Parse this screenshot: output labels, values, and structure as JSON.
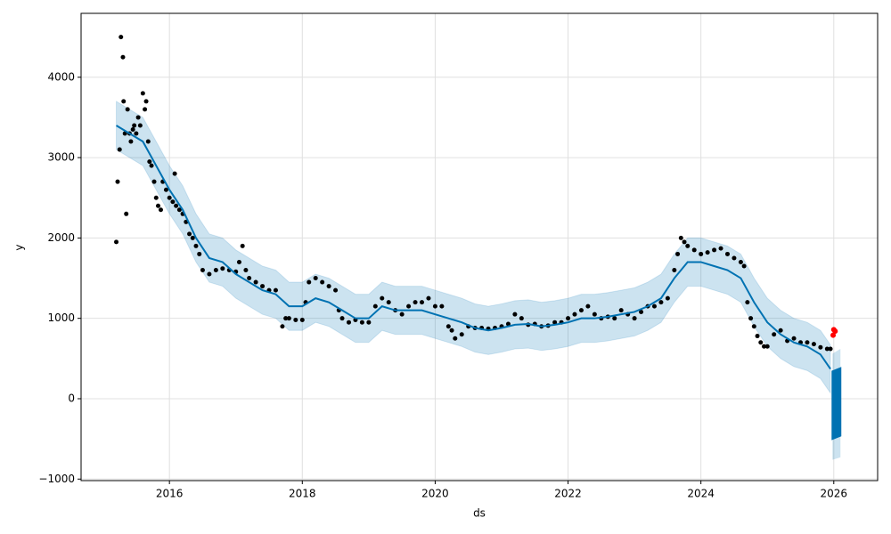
{
  "chart_data": {
    "type": "forecast",
    "x_label": "ds",
    "y_label": "y",
    "xlim": [
      2014.67,
      2026.66
    ],
    "ylim": [
      -1019,
      4795
    ],
    "xticks": [
      2016,
      2018,
      2020,
      2022,
      2024,
      2026
    ],
    "yticks": [
      {
        "value": -1000,
        "label": "−1000"
      },
      0,
      1000,
      2000,
      3000,
      4000
    ],
    "grid": true,
    "observed": {
      "color": "#000000",
      "x": [
        2015.2,
        2015.22,
        2015.25,
        2015.27,
        2015.3,
        2015.31,
        2015.33,
        2015.35,
        2015.37,
        2015.4,
        2015.42,
        2015.45,
        2015.47,
        2015.5,
        2015.53,
        2015.56,
        2015.6,
        2015.63,
        2015.65,
        2015.68,
        2015.7,
        2015.73,
        2015.77,
        2015.8,
        2015.83,
        2015.87,
        2015.9,
        2015.95,
        2016.0,
        2016.05,
        2016.08,
        2016.1,
        2016.15,
        2016.2,
        2016.25,
        2016.3,
        2016.35,
        2016.4,
        2016.45,
        2016.5,
        2016.6,
        2016.7,
        2016.8,
        2016.9,
        2017.0,
        2017.05,
        2017.1,
        2017.15,
        2017.2,
        2017.3,
        2017.4,
        2017.5,
        2017.6,
        2017.7,
        2017.75,
        2017.8,
        2017.9,
        2018.0,
        2018.05,
        2018.1,
        2018.2,
        2018.3,
        2018.4,
        2018.5,
        2018.55,
        2018.6,
        2018.7,
        2018.8,
        2018.9,
        2019.0,
        2019.1,
        2019.2,
        2019.3,
        2019.4,
        2019.5,
        2019.6,
        2019.7,
        2019.8,
        2019.9,
        2020.0,
        2020.1,
        2020.2,
        2020.25,
        2020.3,
        2020.4,
        2020.5,
        2020.6,
        2020.7,
        2020.8,
        2020.9,
        2021.0,
        2021.1,
        2021.2,
        2021.3,
        2021.4,
        2021.5,
        2021.6,
        2021.7,
        2021.8,
        2021.9,
        2022.0,
        2022.1,
        2022.2,
        2022.3,
        2022.4,
        2022.5,
        2022.6,
        2022.7,
        2022.8,
        2022.9,
        2023.0,
        2023.1,
        2023.2,
        2023.3,
        2023.4,
        2023.5,
        2023.6,
        2023.65,
        2023.7,
        2023.75,
        2023.8,
        2023.9,
        2024.0,
        2024.1,
        2024.2,
        2024.3,
        2024.4,
        2024.5,
        2024.6,
        2024.65,
        2024.7,
        2024.75,
        2024.8,
        2024.85,
        2024.9,
        2024.95,
        2025.0,
        2025.1,
        2025.2,
        2025.3,
        2025.4,
        2025.5,
        2025.6,
        2025.7,
        2025.8,
        2025.9,
        2025.95
      ],
      "values": [
        1950,
        2700,
        3100,
        4500,
        4250,
        3700,
        3300,
        2300,
        3600,
        3300,
        3200,
        3350,
        3400,
        3300,
        3500,
        3400,
        3800,
        3600,
        3700,
        3200,
        2950,
        2900,
        2700,
        2500,
        2400,
        2350,
        2700,
        2600,
        2500,
        2450,
        2800,
        2400,
        2350,
        2300,
        2200,
        2050,
        2000,
        1900,
        1800,
        1600,
        1550,
        1600,
        1620,
        1600,
        1580,
        1700,
        1900,
        1600,
        1500,
        1450,
        1400,
        1350,
        1350,
        900,
        1000,
        1000,
        980,
        980,
        1200,
        1450,
        1500,
        1450,
        1400,
        1350,
        1100,
        1000,
        950,
        980,
        950,
        950,
        1150,
        1250,
        1200,
        1100,
        1050,
        1150,
        1200,
        1200,
        1250,
        1150,
        1150,
        900,
        850,
        750,
        800,
        900,
        880,
        880,
        870,
        880,
        900,
        930,
        1050,
        1000,
        920,
        930,
        900,
        910,
        950,
        950,
        1000,
        1050,
        1100,
        1150,
        1050,
        1000,
        1020,
        1000,
        1100,
        1050,
        1000,
        1080,
        1150,
        1150,
        1200,
        1250,
        1600,
        1800,
        2000,
        1950,
        1900,
        1850,
        1800,
        1820,
        1850,
        1870,
        1800,
        1750,
        1700,
        1650,
        1200,
        1000,
        900,
        780,
        700,
        650,
        650,
        800,
        850,
        720,
        750,
        700,
        700,
        680,
        640,
        620,
        620
      ]
    },
    "line": {
      "color": "#0072b2",
      "band_color": "#0072b2",
      "x": [
        2015.2,
        2015.4,
        2015.6,
        2015.8,
        2016.0,
        2016.2,
        2016.4,
        2016.6,
        2016.8,
        2017.0,
        2017.2,
        2017.4,
        2017.6,
        2017.8,
        2018.0,
        2018.2,
        2018.4,
        2018.6,
        2018.8,
        2019.0,
        2019.2,
        2019.4,
        2019.6,
        2019.8,
        2020.0,
        2020.2,
        2020.4,
        2020.6,
        2020.8,
        2021.0,
        2021.2,
        2021.4,
        2021.6,
        2021.8,
        2022.0,
        2022.2,
        2022.4,
        2022.6,
        2022.8,
        2023.0,
        2023.2,
        2023.4,
        2023.6,
        2023.8,
        2024.0,
        2024.2,
        2024.4,
        2024.6,
        2024.8,
        2025.0,
        2025.2,
        2025.4,
        2025.6,
        2025.8,
        2025.95
      ],
      "values": [
        3400,
        3300,
        3200,
        2900,
        2600,
        2350,
        2000,
        1750,
        1700,
        1550,
        1450,
        1350,
        1300,
        1150,
        1150,
        1250,
        1200,
        1100,
        1000,
        1000,
        1150,
        1100,
        1100,
        1100,
        1050,
        1000,
        950,
        880,
        850,
        880,
        920,
        930,
        900,
        920,
        950,
        1000,
        1000,
        1020,
        1050,
        1080,
        1150,
        1250,
        1500,
        1700,
        1700,
        1650,
        1600,
        1500,
        1200,
        950,
        800,
        700,
        650,
        550,
        370
      ],
      "lower": [
        3100,
        3000,
        2900,
        2600,
        2300,
        2050,
        1700,
        1450,
        1400,
        1250,
        1150,
        1050,
        1000,
        850,
        850,
        950,
        900,
        800,
        700,
        700,
        850,
        800,
        800,
        800,
        750,
        700,
        650,
        580,
        550,
        580,
        620,
        630,
        600,
        620,
        650,
        700,
        700,
        720,
        750,
        780,
        850,
        950,
        1200,
        1400,
        1400,
        1350,
        1300,
        1200,
        900,
        650,
        500,
        400,
        350,
        250,
        70
      ],
      "upper": [
        3700,
        3600,
        3500,
        3200,
        2900,
        2650,
        2300,
        2050,
        2000,
        1850,
        1750,
        1650,
        1600,
        1450,
        1450,
        1550,
        1500,
        1400,
        1300,
        1300,
        1450,
        1400,
        1400,
        1400,
        1350,
        1300,
        1250,
        1180,
        1150,
        1180,
        1220,
        1230,
        1200,
        1220,
        1250,
        1300,
        1300,
        1320,
        1350,
        1380,
        1450,
        1550,
        1800,
        2000,
        2000,
        1950,
        1900,
        1800,
        1500,
        1250,
        1100,
        1000,
        950,
        850,
        670
      ]
    },
    "forecast": {
      "color": "#0072b2",
      "x": [
        2025.98,
        2026.1
      ],
      "lower": [
        -500,
        -460
      ],
      "upper": [
        340,
        380
      ],
      "band_lower": [
        -760,
        -730
      ],
      "band_upper": [
        560,
        620
      ]
    },
    "highlight": {
      "color": "#ff0000",
      "x": [
        2025.99,
        2026.0,
        2026.02
      ],
      "values": [
        790,
        860,
        840
      ]
    }
  }
}
